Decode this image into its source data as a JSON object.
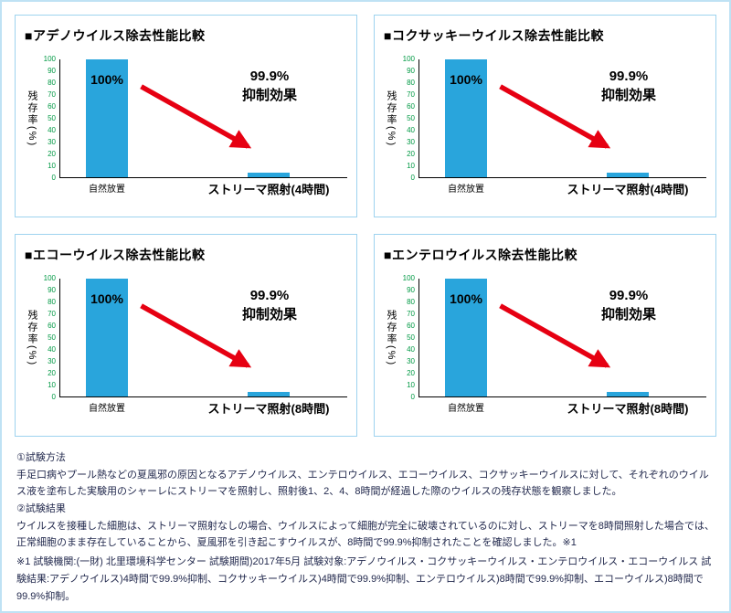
{
  "colors": {
    "bar": "#29a5dc",
    "arrow": "#e60012",
    "tick": "#009944",
    "panelBorder": "#9ed3ef",
    "outerBorder": "#bfe2f4",
    "text": "#232a4e"
  },
  "y_ticks": [
    "100",
    "90",
    "80",
    "70",
    "60",
    "50",
    "40",
    "30",
    "20",
    "10",
    "0"
  ],
  "panels": [
    {
      "title": "■アデノウイルス除去性能比較",
      "ylabel": "残存率(%)",
      "bar_label": "100%",
      "annotation_line1": "99.9%",
      "annotation_line2": "抑制効果",
      "x1": "自然放置",
      "x2": "ストリーマ照射(4時間)"
    },
    {
      "title": "■コクサッキーウイルス除去性能比較",
      "ylabel": "残存率(%)",
      "bar_label": "100%",
      "annotation_line1": "99.9%",
      "annotation_line2": "抑制効果",
      "x1": "自然放置",
      "x2": "ストリーマ照射(4時間)"
    },
    {
      "title": "■エコーウイルス除去性能比較",
      "ylabel": "残存率(%)",
      "bar_label": "100%",
      "annotation_line1": "99.9%",
      "annotation_line2": "抑制効果",
      "x1": "自然放置",
      "x2": "ストリーマ照射(8時間)"
    },
    {
      "title": "■エンテロウイルス除去性能比較",
      "ylabel": "残存率(%)",
      "bar_label": "100%",
      "annotation_line1": "99.9%",
      "annotation_line2": "抑制効果",
      "x1": "自然放置",
      "x2": "ストリーマ照射(8時間)"
    }
  ],
  "notes": {
    "h1": "①試験方法",
    "p1": "手足口病やプール熱などの夏風邪の原因となるアデノウイルス、エンテロウイルス、エコーウイルス、コクサッキーウイルスに対して、それぞれのウイルス液を塗布した実験用のシャーレにストリーマを照射し、照射後1、2、4、8時間が経過した際のウイルスの残存状態を観察しました。",
    "h2": "②試験結果",
    "p2": "ウイルスを接種した細胞は、ストリーマ照射なしの場合、ウイルスによって細胞が完全に破壊されているのに対し、ストリーマを8時間照射した場合では、正常細胞のまま存在していることから、夏風邪を引き起こすウイルスが、8時間で99.9%抑制されたことを確認しました。※1",
    "footnote": "※1 試験機関:(一財) 北里環境科学センター 試験期間)2017年5月 試験対象:アデノウイルス・コクサッキーウイルス・エンテロウイルス・エコーウイルス 試験結果:アデノウイルス)4時間で99.9%抑制、コクサッキーウイルス)4時間で99.9%抑制、エンテロウイルス)8時間で99.9%抑制、エコーウイルス)8時間で99.9%抑制。"
  },
  "chart_data": [
    {
      "type": "bar",
      "title": "アデノウイルス除去性能比較",
      "categories": [
        "自然放置",
        "ストリーマ照射(4時間)"
      ],
      "values": [
        100,
        2
      ],
      "xlabel": "",
      "ylabel": "残存率(%)",
      "ylim": [
        0,
        100
      ],
      "annotation": "99.9% 抑制効果",
      "bar_color": "#29a5dc",
      "legend": "none",
      "grid": false
    },
    {
      "type": "bar",
      "title": "コクサッキーウイルス除去性能比較",
      "categories": [
        "自然放置",
        "ストリーマ照射(4時間)"
      ],
      "values": [
        100,
        2
      ],
      "xlabel": "",
      "ylabel": "残存率(%)",
      "ylim": [
        0,
        100
      ],
      "annotation": "99.9% 抑制効果",
      "bar_color": "#29a5dc",
      "legend": "none",
      "grid": false
    },
    {
      "type": "bar",
      "title": "エコーウイルス除去性能比較",
      "categories": [
        "自然放置",
        "ストリーマ照射(8時間)"
      ],
      "values": [
        100,
        2
      ],
      "xlabel": "",
      "ylabel": "残存率(%)",
      "ylim": [
        0,
        100
      ],
      "annotation": "99.9% 抑制効果",
      "bar_color": "#29a5dc",
      "legend": "none",
      "grid": false
    },
    {
      "type": "bar",
      "title": "エンテロウイルス除去性能比較",
      "categories": [
        "自然放置",
        "ストリーマ照射(8時間)"
      ],
      "values": [
        100,
        2
      ],
      "xlabel": "",
      "ylabel": "残存率(%)",
      "ylim": [
        0,
        100
      ],
      "annotation": "99.9% 抑制効果",
      "bar_color": "#29a5dc",
      "legend": "none",
      "grid": false
    }
  ]
}
